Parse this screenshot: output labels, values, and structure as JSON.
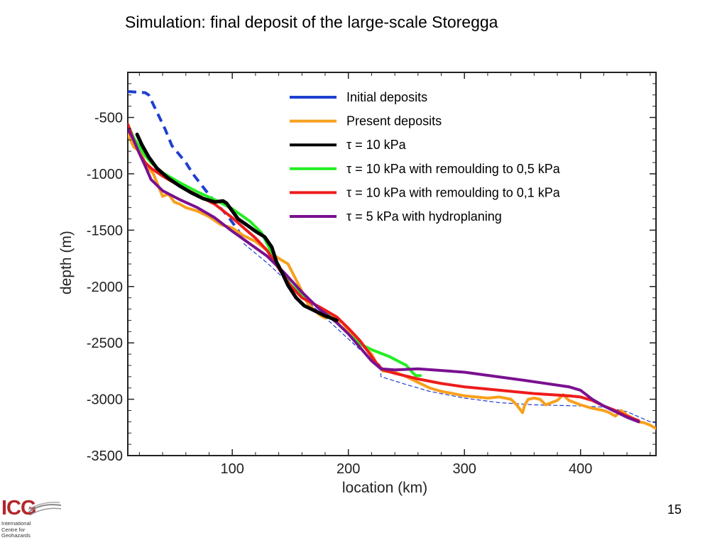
{
  "slide": {
    "title": "Simulation: final deposit of the large-scale Storegga",
    "page_number": "15"
  },
  "logo": {
    "mark": "ICG",
    "lines": [
      "International",
      "Centre for",
      "Geohazards"
    ]
  },
  "chart_data": {
    "type": "line",
    "title": "",
    "xlabel": "location (km)",
    "ylabel": "depth (m)",
    "xlim": [
      10,
      465
    ],
    "ylim": [
      -3500,
      -100
    ],
    "xticks": [
      100,
      200,
      300,
      400
    ],
    "yticks": [
      -500,
      -1000,
      -1500,
      -2000,
      -2500,
      -3000,
      -3500
    ],
    "grid": false,
    "legend_position": "top-right",
    "series": [
      {
        "name": "Initial deposits",
        "color": "#1f3fd0",
        "dash": "dashed",
        "legend": true,
        "x": [
          10,
          25,
          28,
          35,
          42,
          48,
          60,
          66,
          75,
          85,
          95,
          100,
          105,
          108
        ],
        "y": [
          -270,
          -280,
          -300,
          -450,
          -600,
          -750,
          -900,
          -1000,
          -1120,
          -1250,
          -1360,
          -1430,
          -1500,
          -1560
        ]
      },
      {
        "name": "Present deposits",
        "color": "#f7a01e",
        "dash": "solid",
        "legend": true,
        "x": [
          10,
          15,
          20,
          25,
          28,
          32,
          36,
          40,
          45,
          50,
          55,
          60,
          70,
          80,
          90,
          100,
          110,
          120,
          130,
          140,
          148,
          153,
          158,
          165,
          170,
          175,
          180,
          185,
          190,
          195,
          200,
          210,
          220,
          225,
          230,
          240,
          250,
          260,
          270,
          280,
          290,
          300,
          320,
          330,
          340,
          345,
          350,
          352,
          355,
          360,
          365,
          370,
          375,
          380,
          385,
          390,
          400,
          410,
          420,
          425,
          430,
          435,
          440,
          450,
          455,
          460,
          465
        ],
        "y": [
          -650,
          -760,
          -800,
          -900,
          -950,
          -1000,
          -1100,
          -1200,
          -1180,
          -1250,
          -1270,
          -1300,
          -1330,
          -1380,
          -1450,
          -1480,
          -1550,
          -1600,
          -1680,
          -1750,
          -1800,
          -1900,
          -2000,
          -2150,
          -2200,
          -2250,
          -2280,
          -2250,
          -2300,
          -2320,
          -2400,
          -2500,
          -2600,
          -2700,
          -2750,
          -2760,
          -2800,
          -2850,
          -2900,
          -2930,
          -2950,
          -2970,
          -2990,
          -2980,
          -3000,
          -3050,
          -3120,
          -3050,
          -3000,
          -2990,
          -3000,
          -3050,
          -3030,
          -3010,
          -2960,
          -3010,
          -3050,
          -3080,
          -3100,
          -3120,
          -3150,
          -3100,
          -3140,
          -3200,
          -3210,
          -3230,
          -3260
        ]
      },
      {
        "name": "τ = 10 kPa",
        "color": "#000000",
        "dash": "solid",
        "legend": true,
        "x": [
          18,
          22,
          28,
          35,
          45,
          55,
          65,
          75,
          85,
          92,
          95,
          100,
          105,
          112,
          120,
          128,
          134,
          138,
          143,
          148,
          155,
          162,
          170,
          180,
          190
        ],
        "y": [
          -650,
          -740,
          -850,
          -950,
          -1040,
          -1110,
          -1170,
          -1220,
          -1250,
          -1240,
          -1260,
          -1330,
          -1400,
          -1450,
          -1510,
          -1560,
          -1650,
          -1780,
          -1880,
          -1990,
          -2100,
          -2170,
          -2210,
          -2260,
          -2300
        ]
      },
      {
        "name": "τ = 10 kPa with remoulding to 0,5 kPa",
        "color": "#22ee22",
        "dash": "solid",
        "legend": true,
        "x": [
          10,
          15,
          20,
          25,
          30,
          40,
          55,
          70,
          85,
          100,
          115,
          125,
          130,
          135,
          140,
          150,
          160,
          170,
          180,
          190,
          200,
          210,
          220,
          235,
          250,
          255,
          258,
          262
        ],
        "y": [
          -560,
          -680,
          -760,
          -840,
          -900,
          -990,
          -1080,
          -1160,
          -1230,
          -1310,
          -1420,
          -1520,
          -1620,
          -1720,
          -1830,
          -1980,
          -2080,
          -2150,
          -2230,
          -2320,
          -2420,
          -2510,
          -2560,
          -2620,
          -2700,
          -2760,
          -2790,
          -2790
        ]
      },
      {
        "name": "τ = 10 kPa with remoulding to 0,1 kPa",
        "color": "#ee1c1c",
        "dash": "solid",
        "legend": true,
        "x": [
          10,
          15,
          20,
          25,
          30,
          40,
          55,
          70,
          85,
          100,
          110,
          120,
          130,
          140,
          150,
          160,
          175,
          190,
          200,
          210,
          220,
          225,
          230,
          240,
          260,
          280,
          300,
          330,
          360,
          390,
          400,
          410,
          420,
          430,
          440,
          450
        ],
        "y": [
          -560,
          -700,
          -820,
          -900,
          -950,
          -1020,
          -1110,
          -1190,
          -1270,
          -1390,
          -1480,
          -1570,
          -1680,
          -1840,
          -1990,
          -2100,
          -2180,
          -2270,
          -2370,
          -2480,
          -2620,
          -2690,
          -2740,
          -2770,
          -2820,
          -2860,
          -2890,
          -2920,
          -2950,
          -2970,
          -2980,
          -3010,
          -3060,
          -3100,
          -3150,
          -3190
        ]
      },
      {
        "name": "τ = 5 kPa with hydroplaning",
        "color": "#7a1090",
        "dash": "solid",
        "legend": true,
        "x": [
          10,
          15,
          20,
          25,
          30,
          40,
          55,
          70,
          85,
          100,
          115,
          130,
          145,
          160,
          175,
          190,
          200,
          210,
          220,
          228,
          240,
          260,
          300,
          350,
          390,
          400,
          410,
          420,
          430,
          440,
          450
        ],
        "y": [
          -600,
          -700,
          -820,
          -930,
          -1050,
          -1150,
          -1230,
          -1300,
          -1390,
          -1510,
          -1620,
          -1730,
          -1880,
          -2050,
          -2200,
          -2320,
          -2420,
          -2540,
          -2660,
          -2730,
          -2740,
          -2730,
          -2760,
          -2830,
          -2890,
          -2920,
          -3000,
          -3060,
          -3110,
          -3160,
          -3200
        ]
      },
      {
        "name": "",
        "color": "#1f3fd0",
        "dash": "thin-dashed",
        "legend": false,
        "x": [
          110,
          130,
          150,
          170,
          190,
          210,
          228,
          228,
          250,
          270,
          300,
          330,
          360,
          400,
          420,
          440,
          460,
          465
        ],
        "y": [
          -1620,
          -1790,
          -1980,
          -2180,
          -2370,
          -2560,
          -2700,
          -2800,
          -2870,
          -2930,
          -2990,
          -3030,
          -3050,
          -3060,
          -3070,
          -3110,
          -3200,
          -3210
        ]
      }
    ]
  }
}
